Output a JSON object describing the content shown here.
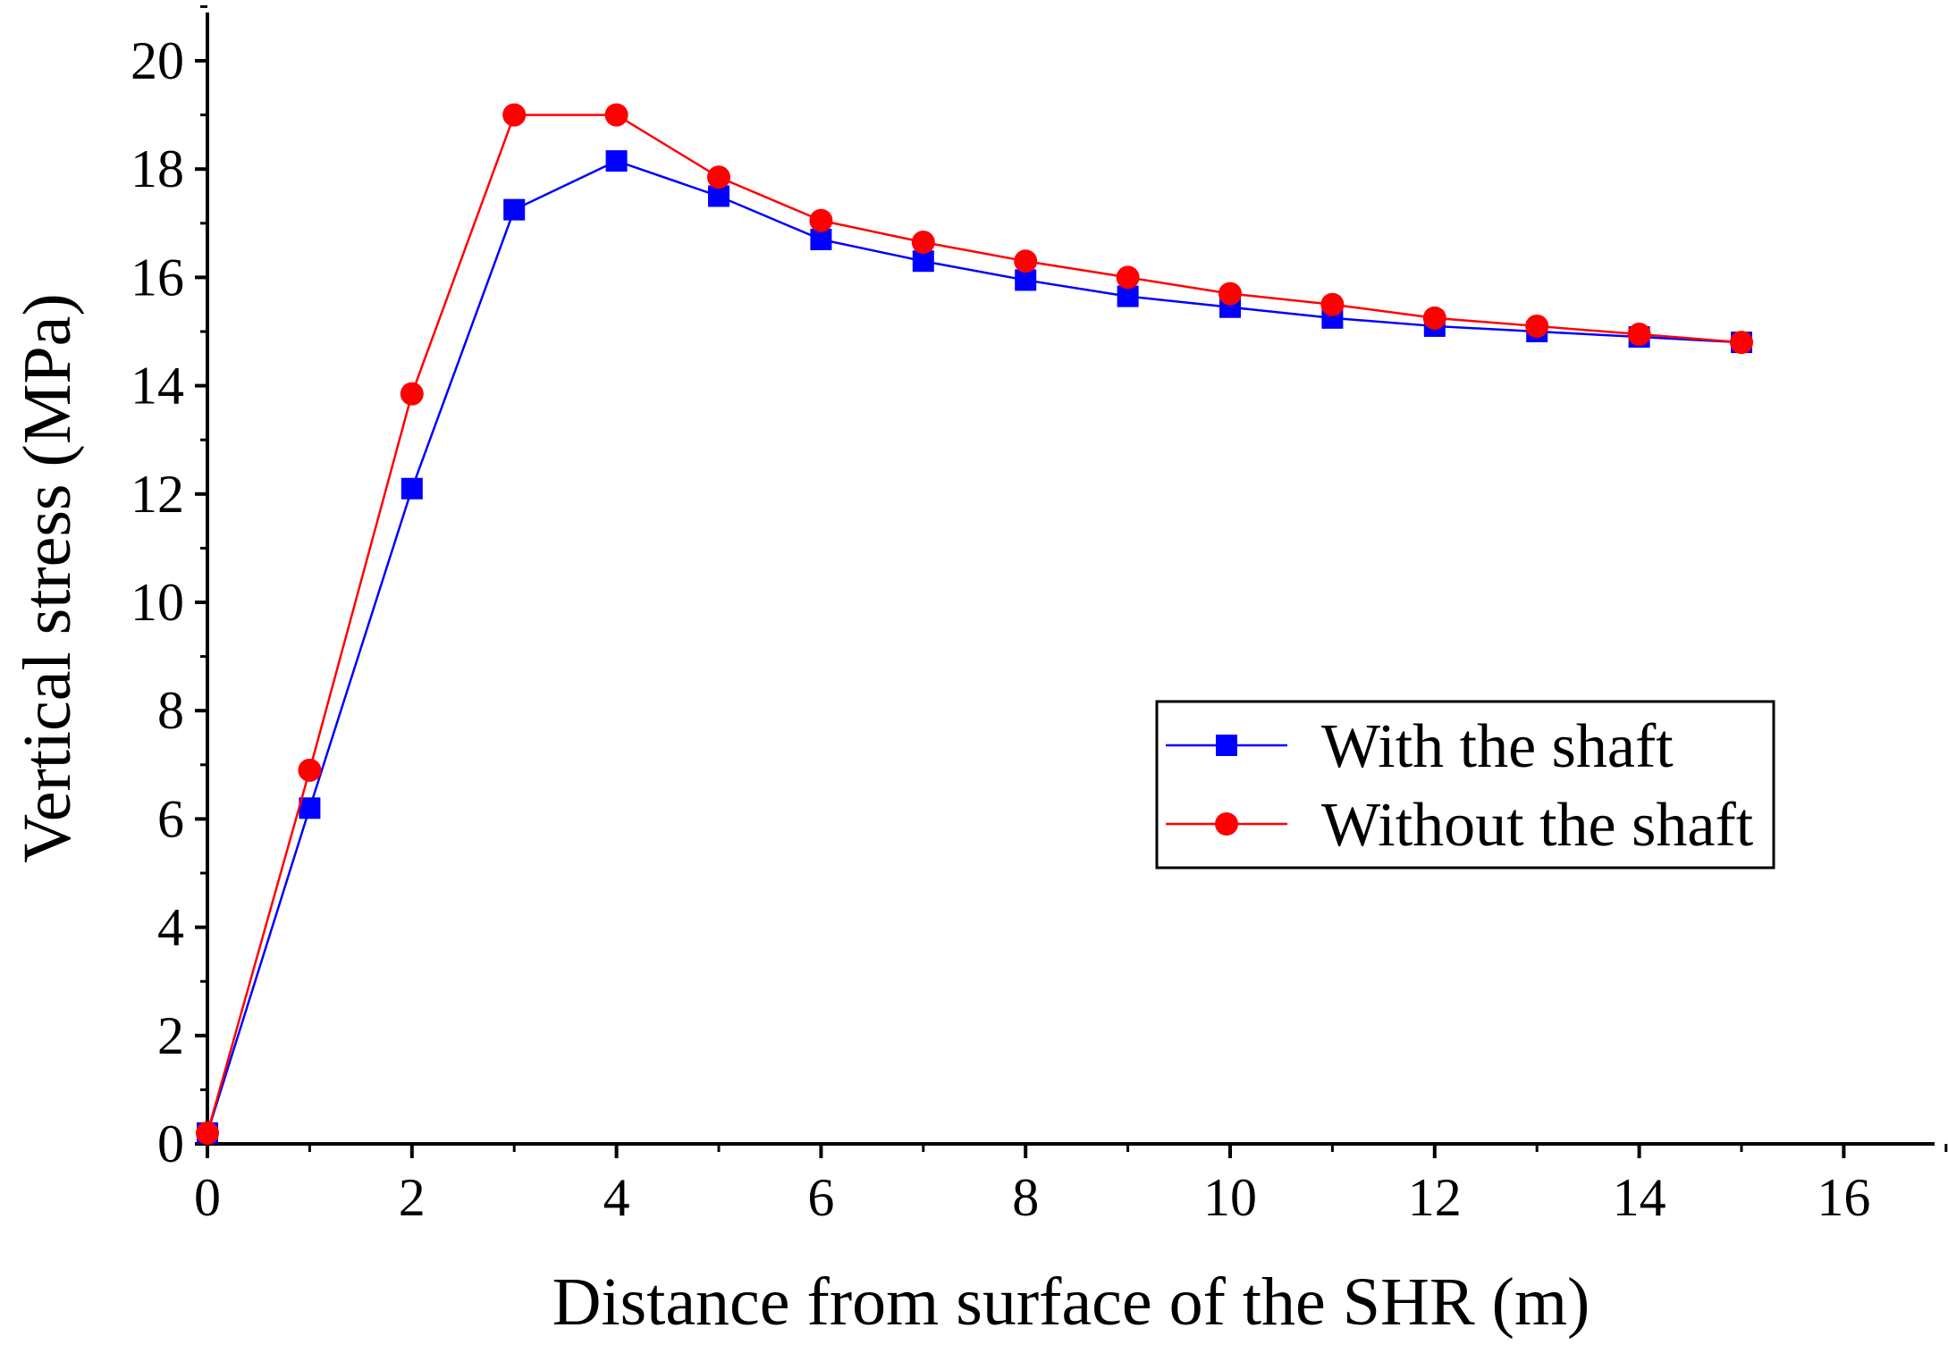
{
  "chart_data": {
    "type": "line",
    "title": "",
    "xlabel": "Distance from surface of the SHR (m)",
    "ylabel": "Vertical stress (MPa)",
    "xlim": [
      0,
      17
    ],
    "ylim": [
      0,
      21
    ],
    "xticks": [
      0,
      2,
      4,
      6,
      8,
      10,
      12,
      14,
      16
    ],
    "yticks": [
      0,
      2,
      4,
      6,
      8,
      10,
      12,
      14,
      16,
      18,
      20
    ],
    "grid": false,
    "legend_position": "right-middle",
    "series": [
      {
        "name": "With the shaft",
        "color": "#0000ff",
        "marker": "square",
        "x": [
          0,
          1,
          2,
          3,
          4,
          5,
          6,
          7,
          8,
          9,
          10,
          11,
          12,
          13,
          14,
          15
        ],
        "values": [
          0.2,
          6.2,
          12.1,
          17.25,
          18.15,
          17.5,
          16.7,
          16.3,
          15.95,
          15.65,
          15.45,
          15.25,
          15.1,
          15.0,
          14.9,
          14.8
        ]
      },
      {
        "name": "Without the shaft",
        "color": "#ff0000",
        "marker": "circle",
        "x": [
          0,
          1,
          2,
          3,
          4,
          5,
          6,
          7,
          8,
          9,
          10,
          11,
          12,
          13,
          14,
          15
        ],
        "values": [
          0.2,
          6.9,
          13.85,
          19.0,
          19.0,
          17.85,
          17.05,
          16.65,
          16.3,
          16.0,
          15.7,
          15.5,
          15.25,
          15.1,
          14.95,
          14.8
        ]
      }
    ]
  }
}
